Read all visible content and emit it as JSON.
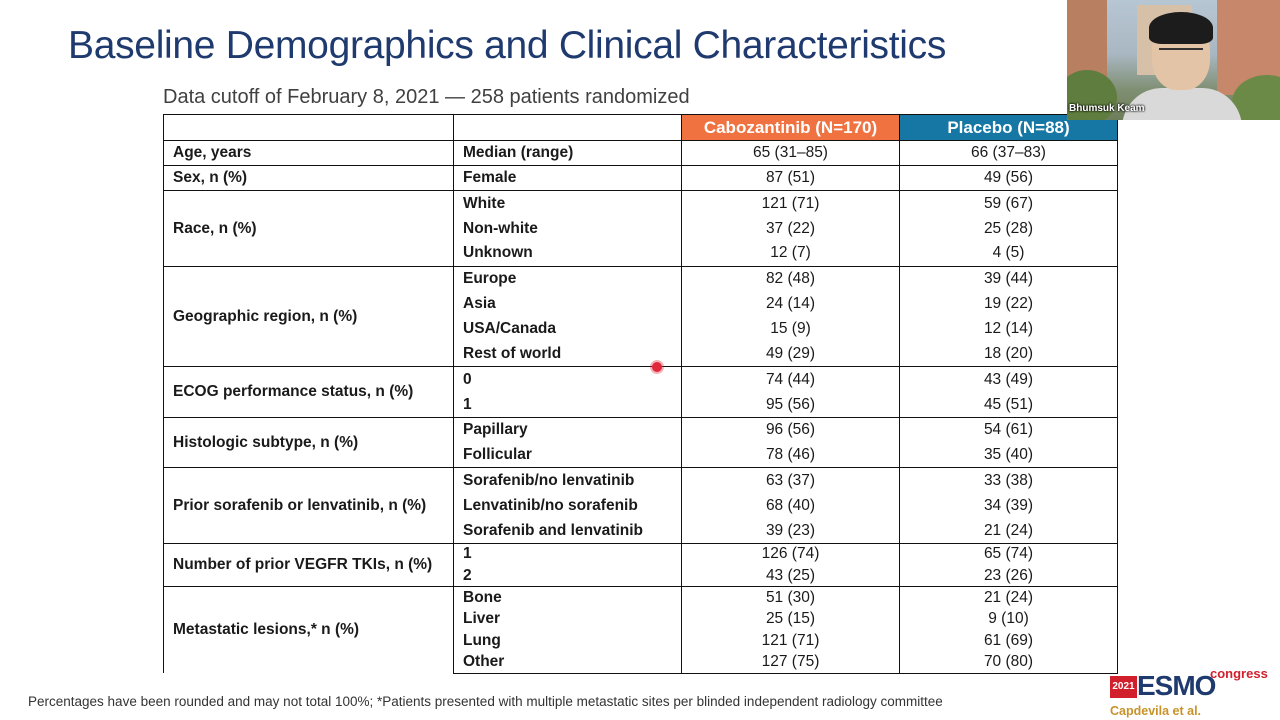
{
  "slide": {
    "title": "Baseline Demographics and Clinical Characteristics",
    "subtitle": "Data cutoff of February 8, 2021 — 258 patients randomized",
    "footnote": "Percentages have been rounded and may not total 100%; *Patients presented with multiple metastatic sites per blinded independent radiology committee"
  },
  "table": {
    "col_cabo": "Cabozantinib (N=170)",
    "col_placebo": "Placebo (N=88)",
    "colors": {
      "cabo_header": "#ef7240",
      "placebo_header": "#1677a5"
    },
    "groups": [
      {
        "label": "Age, years",
        "rows": [
          {
            "sub": "Median (range)",
            "cabo": "65 (31–85)",
            "placebo": "66 (37–83)"
          }
        ]
      },
      {
        "label": "Sex, n (%)",
        "rows": [
          {
            "sub": "Female",
            "cabo": "87 (51)",
            "placebo": "49 (56)"
          }
        ]
      },
      {
        "label": "Race, n (%)",
        "rows": [
          {
            "sub": "White",
            "cabo": "121 (71)",
            "placebo": "59 (67)"
          },
          {
            "sub": "Non-white",
            "cabo": "37 (22)",
            "placebo": "25 (28)"
          },
          {
            "sub": "Unknown",
            "cabo": "12 (7)",
            "placebo": "4 (5)"
          }
        ]
      },
      {
        "label": "Geographic region, n (%)",
        "rows": [
          {
            "sub": "Europe",
            "cabo": "82 (48)",
            "placebo": "39 (44)"
          },
          {
            "sub": "Asia",
            "cabo": "24 (14)",
            "placebo": "19 (22)"
          },
          {
            "sub": "USA/Canada",
            "cabo": "15 (9)",
            "placebo": "12 (14)"
          },
          {
            "sub": "Rest of world",
            "cabo": "49 (29)",
            "placebo": "18 (20)"
          }
        ]
      },
      {
        "label": "ECOG performance status, n (%)",
        "rows": [
          {
            "sub": "0",
            "cabo": "74 (44)",
            "placebo": "43 (49)"
          },
          {
            "sub": "1",
            "cabo": "95 (56)",
            "placebo": "45 (51)"
          }
        ]
      },
      {
        "label": "Histologic subtype, n (%)",
        "rows": [
          {
            "sub": "Papillary",
            "cabo": "96 (56)",
            "placebo": "54 (61)"
          },
          {
            "sub": "Follicular",
            "cabo": "78 (46)",
            "placebo": "35 (40)"
          }
        ]
      },
      {
        "label": "Prior sorafenib or lenvatinib, n (%)",
        "rows": [
          {
            "sub": "Sorafenib/no lenvatinib",
            "cabo": "63 (37)",
            "placebo": "33 (38)"
          },
          {
            "sub": "Lenvatinib/no sorafenib",
            "cabo": "68 (40)",
            "placebo": "34 (39)"
          },
          {
            "sub": "Sorafenib and lenvatinib",
            "cabo": "39 (23)",
            "placebo": "21 (24)"
          }
        ]
      },
      {
        "label": "Number of prior VEGFR TKIs, n (%)",
        "rows": [
          {
            "sub": "1",
            "cabo": "126 (74)",
            "placebo": "65 (74)"
          },
          {
            "sub": "2",
            "cabo": "43 (25)",
            "placebo": "23 (26)"
          }
        ]
      },
      {
        "label": "Metastatic lesions,* n (%)",
        "rows": [
          {
            "sub": "Bone",
            "cabo": "51 (30)",
            "placebo": "21 (24)"
          },
          {
            "sub": "Liver",
            "cabo": "25 (15)",
            "placebo": "9 (10)"
          },
          {
            "sub": "Lung",
            "cabo": "121 (71)",
            "placebo": "61 (69)"
          },
          {
            "sub": "Other",
            "cabo": "127 (75)",
            "placebo": "70 (80)"
          }
        ]
      }
    ]
  },
  "webcam": {
    "name": "Bhumsuk Keam"
  },
  "logo": {
    "year": "2021",
    "word": "ESMO",
    "tagline": "congress"
  },
  "credit": "Capdevila et al."
}
